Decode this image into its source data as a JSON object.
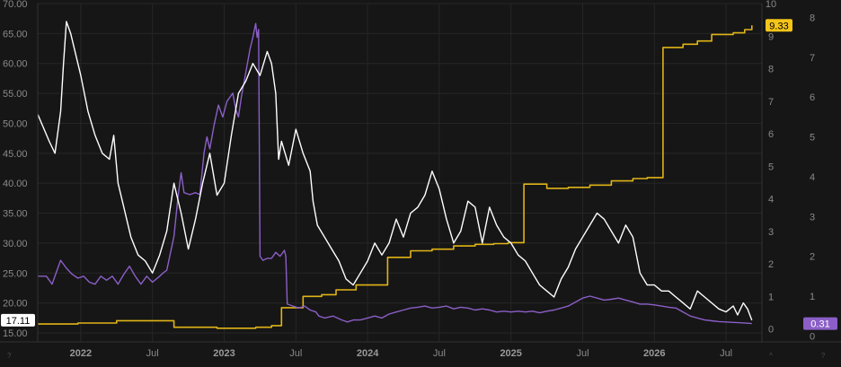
{
  "chart_data": {
    "type": "line",
    "x_ticks": [
      {
        "label": "2022",
        "year": true
      },
      {
        "label": "Jul",
        "year": false
      },
      {
        "label": "2023",
        "year": true
      },
      {
        "label": "Jul",
        "year": false
      },
      {
        "label": "2024",
        "year": true
      },
      {
        "label": "Jul",
        "year": false
      },
      {
        "label": "2025",
        "year": true
      },
      {
        "label": "Jul",
        "year": false
      },
      {
        "label": "2026",
        "year": true
      },
      {
        "label": "Jul",
        "year": false
      }
    ],
    "x_tick_dates": [
      2022.0,
      2022.5,
      2023.0,
      2023.5,
      2024.0,
      2024.5,
      2025.0,
      2025.5,
      2026.0,
      2026.5
    ],
    "xlim": [
      2021.7,
      2026.75
    ],
    "left_axis": {
      "ylim": [
        13.5,
        70.0
      ],
      "ticks": [
        "15.00",
        "20.00",
        "25.00",
        "30.00",
        "35.00",
        "40.00",
        "45.00",
        "50.00",
        "55.00",
        "60.00",
        "65.00",
        "70.00"
      ]
    },
    "right_axis_1": {
      "ylim": [
        -0.4,
        10.0
      ],
      "ticks": [
        "0",
        "1",
        "2",
        "3",
        "4",
        "5",
        "6",
        "7",
        "8",
        "9",
        "10"
      ]
    },
    "right_axis_2": {
      "ylim": [
        -0.15,
        8.35
      ],
      "ticks": [
        "0",
        "1",
        "2",
        "3",
        "4",
        "5",
        "6",
        "7",
        "8"
      ]
    },
    "series": [
      {
        "color": "#ffffff",
        "axis": "left",
        "last_value": "17.11",
        "badge_bg": "#ffffff",
        "badge_fg": "#000000",
        "points": [
          [
            2021.7,
            51.5
          ],
          [
            2021.78,
            47
          ],
          [
            2021.82,
            45
          ],
          [
            2021.86,
            52
          ],
          [
            2021.88,
            60
          ],
          [
            2021.9,
            67
          ],
          [
            2021.93,
            65
          ],
          [
            2021.96,
            62
          ],
          [
            2022.0,
            58
          ],
          [
            2022.05,
            52
          ],
          [
            2022.1,
            48
          ],
          [
            2022.15,
            45
          ],
          [
            2022.2,
            44
          ],
          [
            2022.23,
            48
          ],
          [
            2022.26,
            40
          ],
          [
            2022.3,
            36
          ],
          [
            2022.35,
            31
          ],
          [
            2022.4,
            28
          ],
          [
            2022.45,
            27
          ],
          [
            2022.5,
            25
          ],
          [
            2022.55,
            28
          ],
          [
            2022.6,
            32
          ],
          [
            2022.65,
            40
          ],
          [
            2022.7,
            35
          ],
          [
            2022.75,
            29
          ],
          [
            2022.8,
            34
          ],
          [
            2022.85,
            40
          ],
          [
            2022.9,
            45
          ],
          [
            2022.95,
            38
          ],
          [
            2023.0,
            40
          ],
          [
            2023.05,
            48
          ],
          [
            2023.1,
            55
          ],
          [
            2023.15,
            57
          ],
          [
            2023.2,
            60
          ],
          [
            2023.25,
            58
          ],
          [
            2023.3,
            62
          ],
          [
            2023.33,
            60
          ],
          [
            2023.36,
            55
          ],
          [
            2023.38,
            44
          ],
          [
            2023.4,
            47
          ],
          [
            2023.45,
            43
          ],
          [
            2023.5,
            49
          ],
          [
            2023.55,
            45
          ],
          [
            2023.6,
            42
          ],
          [
            2023.62,
            37
          ],
          [
            2023.65,
            33
          ],
          [
            2023.7,
            31
          ],
          [
            2023.75,
            29
          ],
          [
            2023.8,
            27
          ],
          [
            2023.85,
            24
          ],
          [
            2023.9,
            23
          ],
          [
            2023.95,
            25
          ],
          [
            2024.0,
            27
          ],
          [
            2024.05,
            30
          ],
          [
            2024.1,
            28
          ],
          [
            2024.15,
            30
          ],
          [
            2024.2,
            34
          ],
          [
            2024.25,
            31
          ],
          [
            2024.3,
            35
          ],
          [
            2024.35,
            36
          ],
          [
            2024.4,
            38
          ],
          [
            2024.45,
            42
          ],
          [
            2024.5,
            39
          ],
          [
            2024.55,
            34
          ],
          [
            2024.6,
            30
          ],
          [
            2024.65,
            32
          ],
          [
            2024.7,
            37
          ],
          [
            2024.75,
            36
          ],
          [
            2024.8,
            30
          ],
          [
            2024.85,
            36
          ],
          [
            2024.9,
            33
          ],
          [
            2024.95,
            31
          ],
          [
            2025.0,
            30
          ],
          [
            2025.05,
            28
          ],
          [
            2025.1,
            27
          ],
          [
            2025.15,
            25
          ],
          [
            2025.2,
            23
          ],
          [
            2025.25,
            22
          ],
          [
            2025.3,
            21
          ],
          [
            2025.35,
            24
          ],
          [
            2025.4,
            26
          ],
          [
            2025.45,
            29
          ],
          [
            2025.5,
            31
          ],
          [
            2025.55,
            33
          ],
          [
            2025.6,
            35
          ],
          [
            2025.65,
            34
          ],
          [
            2025.7,
            32
          ],
          [
            2025.75,
            30
          ],
          [
            2025.8,
            33
          ],
          [
            2025.85,
            31
          ],
          [
            2025.9,
            25
          ],
          [
            2025.95,
            23
          ],
          [
            2026.0,
            23
          ],
          [
            2026.05,
            22
          ],
          [
            2026.1,
            22
          ],
          [
            2026.15,
            21
          ],
          [
            2026.2,
            20
          ],
          [
            2026.25,
            19
          ],
          [
            2026.3,
            22
          ],
          [
            2026.35,
            21
          ],
          [
            2026.4,
            20
          ],
          [
            2026.45,
            19
          ],
          [
            2026.5,
            18.5
          ],
          [
            2026.55,
            19.5
          ],
          [
            2026.58,
            18
          ],
          [
            2026.62,
            20
          ],
          [
            2026.65,
            19
          ],
          [
            2026.68,
            17.11
          ]
        ]
      },
      {
        "color": "#8b5fc7",
        "axis": "right_2",
        "last_value": "0.31",
        "badge_bg": "#8b5fc7",
        "badge_fg": "#ffffff",
        "points": [
          [
            2021.7,
            1.5
          ],
          [
            2021.76,
            1.5
          ],
          [
            2021.8,
            1.3
          ],
          [
            2021.83,
            1.6
          ],
          [
            2021.86,
            1.9
          ],
          [
            2021.9,
            1.7
          ],
          [
            2021.94,
            1.55
          ],
          [
            2021.98,
            1.45
          ],
          [
            2022.02,
            1.5
          ],
          [
            2022.06,
            1.35
          ],
          [
            2022.1,
            1.3
          ],
          [
            2022.14,
            1.5
          ],
          [
            2022.18,
            1.4
          ],
          [
            2022.22,
            1.5
          ],
          [
            2022.26,
            1.3
          ],
          [
            2022.3,
            1.55
          ],
          [
            2022.34,
            1.75
          ],
          [
            2022.38,
            1.5
          ],
          [
            2022.42,
            1.3
          ],
          [
            2022.46,
            1.5
          ],
          [
            2022.5,
            1.35
          ],
          [
            2022.55,
            1.5
          ],
          [
            2022.58,
            1.6
          ],
          [
            2022.6,
            1.65
          ],
          [
            2022.65,
            2.5
          ],
          [
            2022.68,
            3.55
          ],
          [
            2022.7,
            4.1
          ],
          [
            2022.72,
            3.6
          ],
          [
            2022.76,
            3.55
          ],
          [
            2022.8,
            3.6
          ],
          [
            2022.83,
            3.55
          ],
          [
            2022.86,
            4.6
          ],
          [
            2022.88,
            5.0
          ],
          [
            2022.9,
            4.7
          ],
          [
            2022.93,
            5.3
          ],
          [
            2022.96,
            5.8
          ],
          [
            2022.99,
            5.5
          ],
          [
            2023.02,
            5.9
          ],
          [
            2023.06,
            6.1
          ],
          [
            2023.08,
            5.7
          ],
          [
            2023.1,
            5.5
          ],
          [
            2023.12,
            6.0
          ],
          [
            2023.15,
            6.6
          ],
          [
            2023.18,
            7.2
          ],
          [
            2023.2,
            7.5
          ],
          [
            2023.22,
            7.85
          ],
          [
            2023.23,
            7.5
          ],
          [
            2023.24,
            7.7
          ],
          [
            2023.25,
            2.0
          ],
          [
            2023.27,
            1.9
          ],
          [
            2023.3,
            1.95
          ],
          [
            2023.33,
            1.95
          ],
          [
            2023.36,
            2.1
          ],
          [
            2023.39,
            2.0
          ],
          [
            2023.42,
            2.15
          ],
          [
            2023.43,
            2.0
          ],
          [
            2023.44,
            0.8
          ],
          [
            2023.48,
            0.75
          ],
          [
            2023.52,
            0.7
          ],
          [
            2023.56,
            0.75
          ],
          [
            2023.6,
            0.65
          ],
          [
            2023.64,
            0.6
          ],
          [
            2023.66,
            0.5
          ],
          [
            2023.7,
            0.45
          ],
          [
            2023.76,
            0.5
          ],
          [
            2023.82,
            0.4
          ],
          [
            2023.86,
            0.35
          ],
          [
            2023.9,
            0.4
          ],
          [
            2023.95,
            0.4
          ],
          [
            2024.0,
            0.45
          ],
          [
            2024.05,
            0.5
          ],
          [
            2024.1,
            0.45
          ],
          [
            2024.15,
            0.55
          ],
          [
            2024.2,
            0.6
          ],
          [
            2024.25,
            0.65
          ],
          [
            2024.3,
            0.7
          ],
          [
            2024.35,
            0.72
          ],
          [
            2024.4,
            0.75
          ],
          [
            2024.45,
            0.7
          ],
          [
            2024.5,
            0.72
          ],
          [
            2024.55,
            0.75
          ],
          [
            2024.6,
            0.68
          ],
          [
            2024.65,
            0.72
          ],
          [
            2024.7,
            0.7
          ],
          [
            2024.75,
            0.65
          ],
          [
            2024.8,
            0.68
          ],
          [
            2024.85,
            0.65
          ],
          [
            2024.9,
            0.6
          ],
          [
            2024.95,
            0.62
          ],
          [
            2025.0,
            0.6
          ],
          [
            2025.05,
            0.62
          ],
          [
            2025.1,
            0.6
          ],
          [
            2025.15,
            0.62
          ],
          [
            2025.2,
            0.58
          ],
          [
            2025.25,
            0.62
          ],
          [
            2025.3,
            0.65
          ],
          [
            2025.35,
            0.7
          ],
          [
            2025.4,
            0.75
          ],
          [
            2025.45,
            0.85
          ],
          [
            2025.5,
            0.95
          ],
          [
            2025.55,
            1.0
          ],
          [
            2025.6,
            0.95
          ],
          [
            2025.65,
            0.9
          ],
          [
            2025.7,
            0.92
          ],
          [
            2025.75,
            0.95
          ],
          [
            2025.8,
            0.9
          ],
          [
            2025.85,
            0.85
          ],
          [
            2025.9,
            0.8
          ],
          [
            2025.95,
            0.8
          ],
          [
            2026.0,
            0.78
          ],
          [
            2026.05,
            0.75
          ],
          [
            2026.1,
            0.72
          ],
          [
            2026.15,
            0.7
          ],
          [
            2026.2,
            0.6
          ],
          [
            2026.25,
            0.5
          ],
          [
            2026.3,
            0.45
          ],
          [
            2026.35,
            0.4
          ],
          [
            2026.4,
            0.38
          ],
          [
            2026.45,
            0.36
          ],
          [
            2026.5,
            0.35
          ],
          [
            2026.55,
            0.34
          ],
          [
            2026.6,
            0.33
          ],
          [
            2026.68,
            0.31
          ]
        ]
      },
      {
        "color": "#e0b417",
        "axis": "right_1",
        "step": true,
        "last_value": "9.33",
        "badge_bg": "#f5c518",
        "badge_fg": "#000000",
        "points": [
          [
            2021.7,
            0.15
          ],
          [
            2021.98,
            0.18
          ],
          [
            2022.25,
            0.25
          ],
          [
            2022.65,
            0.05
          ],
          [
            2022.95,
            0.02
          ],
          [
            2023.22,
            0.05
          ],
          [
            2023.33,
            0.1
          ],
          [
            2023.4,
            0.65
          ],
          [
            2023.55,
            1.0
          ],
          [
            2023.68,
            1.05
          ],
          [
            2023.78,
            1.2
          ],
          [
            2023.92,
            1.35
          ],
          [
            2024.14,
            2.2
          ],
          [
            2024.3,
            2.4
          ],
          [
            2024.45,
            2.45
          ],
          [
            2024.6,
            2.55
          ],
          [
            2024.75,
            2.6
          ],
          [
            2024.88,
            2.62
          ],
          [
            2024.98,
            2.65
          ],
          [
            2025.09,
            4.45
          ],
          [
            2025.25,
            4.32
          ],
          [
            2025.4,
            4.35
          ],
          [
            2025.55,
            4.42
          ],
          [
            2025.7,
            4.55
          ],
          [
            2025.85,
            4.62
          ],
          [
            2025.95,
            4.65
          ],
          [
            2026.06,
            8.65
          ],
          [
            2026.2,
            8.75
          ],
          [
            2026.3,
            8.85
          ],
          [
            2026.4,
            9.05
          ],
          [
            2026.55,
            9.1
          ],
          [
            2026.63,
            9.2
          ],
          [
            2026.68,
            9.33
          ]
        ]
      }
    ],
    "corner_glyphs": [
      "?",
      "^"
    ]
  }
}
